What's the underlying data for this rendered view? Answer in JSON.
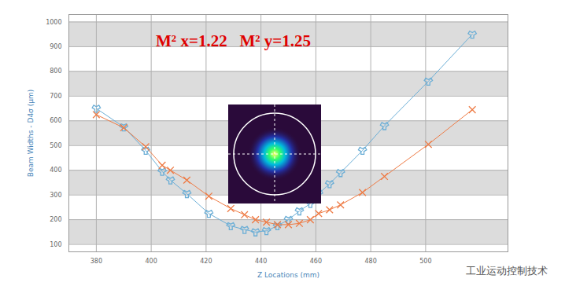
{
  "chart_data": {
    "type": "line",
    "title": "M² x=1.22   M² y=1.25",
    "x_label": "Z Locations (mm)",
    "y_label": "Beam Widths - D4σ (µm)",
    "x": [
      380,
      390,
      398,
      404,
      407,
      413,
      421,
      429,
      434,
      438,
      442,
      446,
      450,
      454,
      458,
      461,
      465,
      469,
      477,
      485,
      501,
      517
    ],
    "series": [
      {
        "color": "#6baed6",
        "marker": "wye",
        "values": [
          650,
          575,
          480,
          395,
          360,
          305,
          225,
          175,
          160,
          150,
          155,
          175,
          200,
          235,
          265,
          305,
          345,
          390,
          480,
          580,
          760,
          950
        ]
      },
      {
        "color": "#ee7b45",
        "marker": "times",
        "values": [
          625,
          572,
          495,
          420,
          400,
          360,
          295,
          245,
          220,
          200,
          190,
          180,
          180,
          185,
          200,
          225,
          240,
          260,
          310,
          375,
          505,
          645
        ]
      }
    ],
    "xlim": [
      370,
      530
    ],
    "xticks": [
      380,
      400,
      420,
      440,
      460,
      480,
      500
    ],
    "ylim": [
      70,
      1030
    ],
    "yticks": [
      100,
      200,
      300,
      400,
      500,
      600,
      700,
      800,
      900,
      1000
    ],
    "grid": true,
    "annotations": [
      "工业运动控制技术"
    ]
  }
}
